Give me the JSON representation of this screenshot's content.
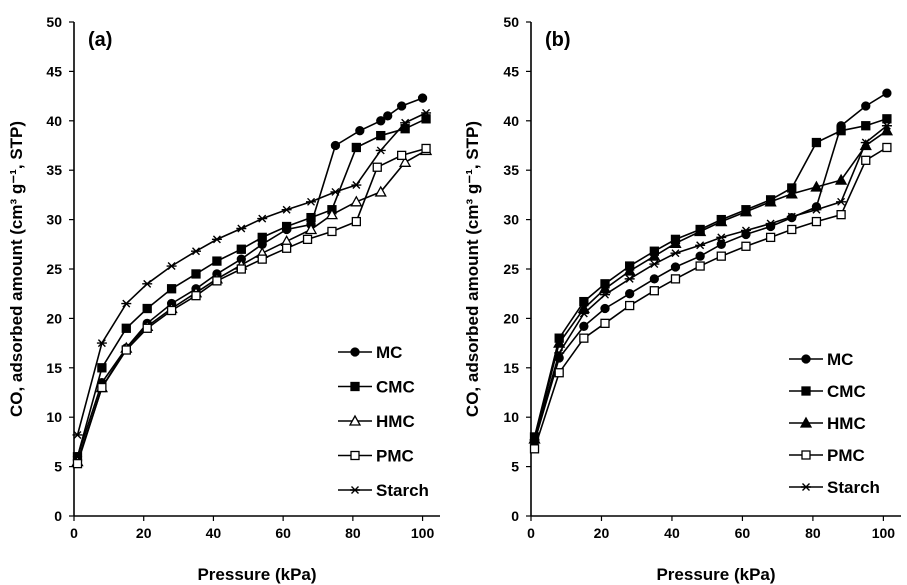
{
  "chart_data": [
    {
      "type": "line",
      "panel_label": "(a)",
      "xlabel": "Pressure (kPa)",
      "ylabel": "CO, adsorbed amount (cm³ g⁻¹, STP)",
      "xlim": [
        0,
        105
      ],
      "ylim": [
        0,
        50
      ],
      "xticks": [
        "0",
        "20",
        "40",
        "60",
        "80",
        "100"
      ],
      "yticks": [
        "0",
        "5",
        "10",
        "15",
        "20",
        "25",
        "30",
        "35",
        "40",
        "45",
        "50"
      ],
      "grid": false,
      "legend_position": "bottom-right",
      "series": [
        {
          "name": "MC",
          "marker": "circle-filled",
          "x": [
            1,
            8,
            15,
            21,
            28,
            35,
            41,
            48,
            54,
            61,
            68,
            75,
            82,
            88,
            90,
            94,
            100
          ],
          "y": [
            6.0,
            13.5,
            17.0,
            19.5,
            21.5,
            23.0,
            24.5,
            26.0,
            27.5,
            29.0,
            29.5,
            37.5,
            39.0,
            40.0,
            40.5,
            41.5,
            42.3
          ]
        },
        {
          "name": "CMC",
          "marker": "square-filled",
          "x": [
            1,
            8,
            15,
            21,
            28,
            35,
            41,
            48,
            54,
            61,
            68,
            74,
            81,
            88,
            95,
            101
          ],
          "y": [
            6.0,
            15.0,
            19.0,
            21.0,
            23.0,
            24.5,
            25.8,
            27.0,
            28.2,
            29.3,
            30.2,
            31.0,
            37.3,
            38.5,
            39.2,
            40.2
          ]
        },
        {
          "name": "HMC",
          "marker": "triangle-open",
          "x": [
            1,
            8,
            15,
            21,
            28,
            35,
            41,
            48,
            54,
            61,
            68,
            74,
            81,
            88,
            95,
            101
          ],
          "y": [
            5.5,
            13.0,
            17.0,
            19.2,
            21.0,
            22.6,
            24.0,
            25.4,
            26.6,
            27.8,
            29.0,
            30.5,
            31.8,
            32.8,
            35.8,
            37.0
          ]
        },
        {
          "name": "PMC",
          "marker": "square-open",
          "x": [
            1,
            8,
            15,
            21,
            28,
            35,
            41,
            48,
            54,
            61,
            67,
            74,
            81,
            87,
            94,
            101
          ],
          "y": [
            5.3,
            13.0,
            16.8,
            19.0,
            20.8,
            22.3,
            23.8,
            25.0,
            26.0,
            27.1,
            28.0,
            28.8,
            29.8,
            35.3,
            36.5,
            37.2
          ]
        },
        {
          "name": "Starch",
          "marker": "star",
          "x": [
            1,
            8,
            15,
            21,
            28,
            35,
            41,
            48,
            54,
            61,
            68,
            75,
            81,
            88,
            95,
            101
          ],
          "y": [
            8.2,
            17.5,
            21.5,
            23.5,
            25.3,
            26.8,
            28.0,
            29.1,
            30.1,
            31.0,
            31.8,
            32.8,
            33.5,
            37.0,
            39.8,
            40.8
          ]
        }
      ]
    },
    {
      "type": "line",
      "panel_label": "(b)",
      "xlabel": "Pressure (kPa)",
      "ylabel": "CO, adsorbed amount (cm³ g⁻¹, STP)",
      "xlim": [
        0,
        105
      ],
      "ylim": [
        0,
        50
      ],
      "xticks": [
        "0",
        "20",
        "40",
        "60",
        "80",
        "100"
      ],
      "yticks": [
        "0",
        "5",
        "10",
        "15",
        "20",
        "25",
        "30",
        "35",
        "40",
        "45",
        "50"
      ],
      "grid": false,
      "legend_position": "bottom-right",
      "series": [
        {
          "name": "MC",
          "marker": "circle-filled",
          "x": [
            1,
            8,
            15,
            21,
            28,
            35,
            41,
            48,
            54,
            61,
            68,
            74,
            81,
            88,
            95,
            101
          ],
          "y": [
            7.5,
            16.0,
            19.2,
            21.0,
            22.5,
            24.0,
            25.2,
            26.3,
            27.5,
            28.5,
            29.3,
            30.2,
            31.3,
            39.5,
            41.5,
            42.8
          ]
        },
        {
          "name": "CMC",
          "marker": "square-filled",
          "x": [
            1,
            8,
            15,
            21,
            28,
            35,
            41,
            48,
            54,
            61,
            68,
            74,
            81,
            88,
            95,
            101
          ],
          "y": [
            8.0,
            18.0,
            21.7,
            23.5,
            25.3,
            26.8,
            28.0,
            29.0,
            30.0,
            31.0,
            32.0,
            33.2,
            37.8,
            39.0,
            39.5,
            40.2
          ]
        },
        {
          "name": "HMC",
          "marker": "triangle-filled",
          "x": [
            1,
            8,
            15,
            21,
            28,
            35,
            41,
            48,
            54,
            61,
            68,
            74,
            81,
            88,
            95,
            101
          ],
          "y": [
            7.8,
            17.5,
            21.0,
            23.0,
            24.8,
            26.3,
            27.6,
            28.8,
            29.8,
            30.8,
            31.8,
            32.6,
            33.3,
            34.0,
            37.5,
            39.0
          ]
        },
        {
          "name": "PMC",
          "marker": "square-open",
          "x": [
            1,
            8,
            15,
            21,
            28,
            35,
            41,
            48,
            54,
            61,
            68,
            74,
            81,
            88,
            95,
            101
          ],
          "y": [
            6.8,
            14.5,
            18.0,
            19.5,
            21.3,
            22.8,
            24.0,
            25.3,
            26.3,
            27.3,
            28.2,
            29.0,
            29.8,
            30.5,
            36.0,
            37.3
          ]
        },
        {
          "name": "Starch",
          "marker": "star",
          "x": [
            1,
            8,
            15,
            21,
            28,
            35,
            41,
            48,
            54,
            61,
            68,
            74,
            81,
            88,
            95,
            101
          ],
          "y": [
            7.7,
            16.5,
            20.5,
            22.4,
            24.0,
            25.5,
            26.6,
            27.4,
            28.2,
            28.9,
            29.6,
            30.3,
            31.0,
            31.8,
            37.8,
            39.5
          ]
        }
      ]
    }
  ]
}
